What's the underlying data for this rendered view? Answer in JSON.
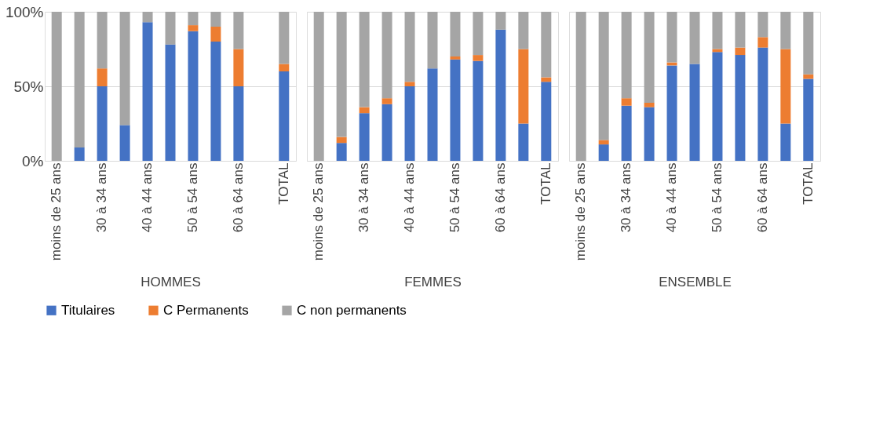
{
  "chart_data": [
    {
      "type": "bar",
      "stacked": true,
      "xlabel": "HOMMES",
      "categories": [
        "moins de 25 ans",
        null,
        "30 à 34 ans",
        null,
        "40 à 44 ans",
        null,
        "50 à 54 ans",
        null,
        "60 à 64 ans",
        null,
        "TOTAL"
      ],
      "ylim": [
        0,
        100
      ],
      "yticks": [
        {
          "value": 0,
          "label": "0%"
        },
        {
          "value": 50,
          "label": "50%"
        },
        {
          "value": 100,
          "label": "100%"
        }
      ],
      "grid": "y",
      "legend": "bottom",
      "series": [
        {
          "name": "Titulaires",
          "color": "#4472c4",
          "values": [
            0,
            9,
            50,
            24,
            93,
            78,
            87,
            80,
            50,
            0,
            60
          ]
        },
        {
          "name": "C Permanents",
          "color": "#ed7d31",
          "values": [
            0,
            0,
            12,
            0,
            0,
            0,
            4,
            10,
            25,
            0,
            5
          ]
        },
        {
          "name": "C non permanents",
          "color": "#a5a5a5",
          "values": [
            100,
            91,
            38,
            76,
            7,
            22,
            9,
            10,
            25,
            0,
            35
          ]
        }
      ]
    },
    {
      "type": "bar",
      "stacked": true,
      "xlabel": "FEMMES",
      "categories": [
        "moins de 25 ans",
        null,
        "30 à 34 ans",
        null,
        "40 à 44 ans",
        null,
        "50 à 54 ans",
        null,
        "60 à 64 ans",
        null,
        "TOTAL"
      ],
      "ylim": [
        0,
        100
      ],
      "yticks": [
        0,
        50,
        100
      ],
      "grid": "y",
      "legend": "bottom",
      "tick_labels": "x",
      "series": [
        {
          "name": "Titulaires",
          "color": "#4472c4",
          "values": [
            0,
            12,
            32,
            38,
            50,
            62,
            68,
            67,
            88,
            25,
            53
          ]
        },
        {
          "name": "C Permanents",
          "color": "#ed7d31",
          "values": [
            0,
            4,
            4,
            4,
            3,
            0,
            2,
            4,
            0,
            50,
            3
          ]
        },
        {
          "name": "C non permanents",
          "color": "#a5a5a5",
          "values": [
            100,
            84,
            64,
            58,
            47,
            38,
            30,
            29,
            12,
            25,
            44
          ]
        }
      ]
    },
    {
      "type": "bar",
      "stacked": true,
      "xlabel": "ENSEMBLE",
      "categories": [
        "moins de 25 ans",
        null,
        "30 à 34 ans",
        null,
        "40 à 44 ans",
        null,
        "50 à 54 ans",
        null,
        "60 à 64 ans",
        null,
        "TOTAL"
      ],
      "ylim": [
        0,
        100
      ],
      "yticks": [
        0,
        50,
        100
      ],
      "grid": "y",
      "legend": "bottom",
      "tick_labels": "x",
      "series": [
        {
          "name": "Titulaires",
          "color": "#4472c4",
          "values": [
            0,
            11,
            37,
            36,
            64,
            65,
            73,
            71,
            76,
            25,
            55
          ]
        },
        {
          "name": "C Permanents",
          "color": "#ed7d31",
          "values": [
            0,
            3,
            5,
            3,
            2,
            0,
            2,
            5,
            7,
            50,
            3
          ]
        },
        {
          "name": "C non permanents",
          "color": "#a5a5a5",
          "values": [
            100,
            86,
            58,
            61,
            34,
            35,
            25,
            24,
            17,
            25,
            42
          ]
        }
      ]
    }
  ]
}
